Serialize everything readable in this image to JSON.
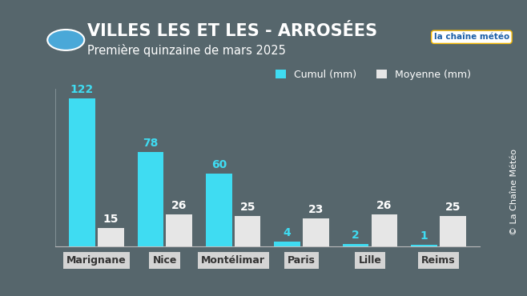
{
  "chart_data": {
    "type": "bar",
    "title": "VILLES LES ET LES - ARROSÉES",
    "subtitle": "Première quinzaine de mars 2025",
    "logo": "la chaîne météo",
    "credit": "© La Chaîne Météo",
    "categories": [
      "Marignane",
      "Nice",
      "Montélimar",
      "Paris",
      "Lille",
      "Reims"
    ],
    "series": [
      {
        "name": "Cumul (mm)",
        "color": "#3fdcf2",
        "values": [
          122,
          78,
          60,
          4,
          2,
          1
        ]
      },
      {
        "name": "Moyenne (mm)",
        "color": "#e6e6e6",
        "values": [
          15,
          26,
          25,
          23,
          26,
          25
        ]
      }
    ],
    "ylim": [
      0,
      130
    ],
    "yticks": [],
    "tick_labels": "x",
    "data_labels": true,
    "legend": "upper right",
    "grid": false
  }
}
